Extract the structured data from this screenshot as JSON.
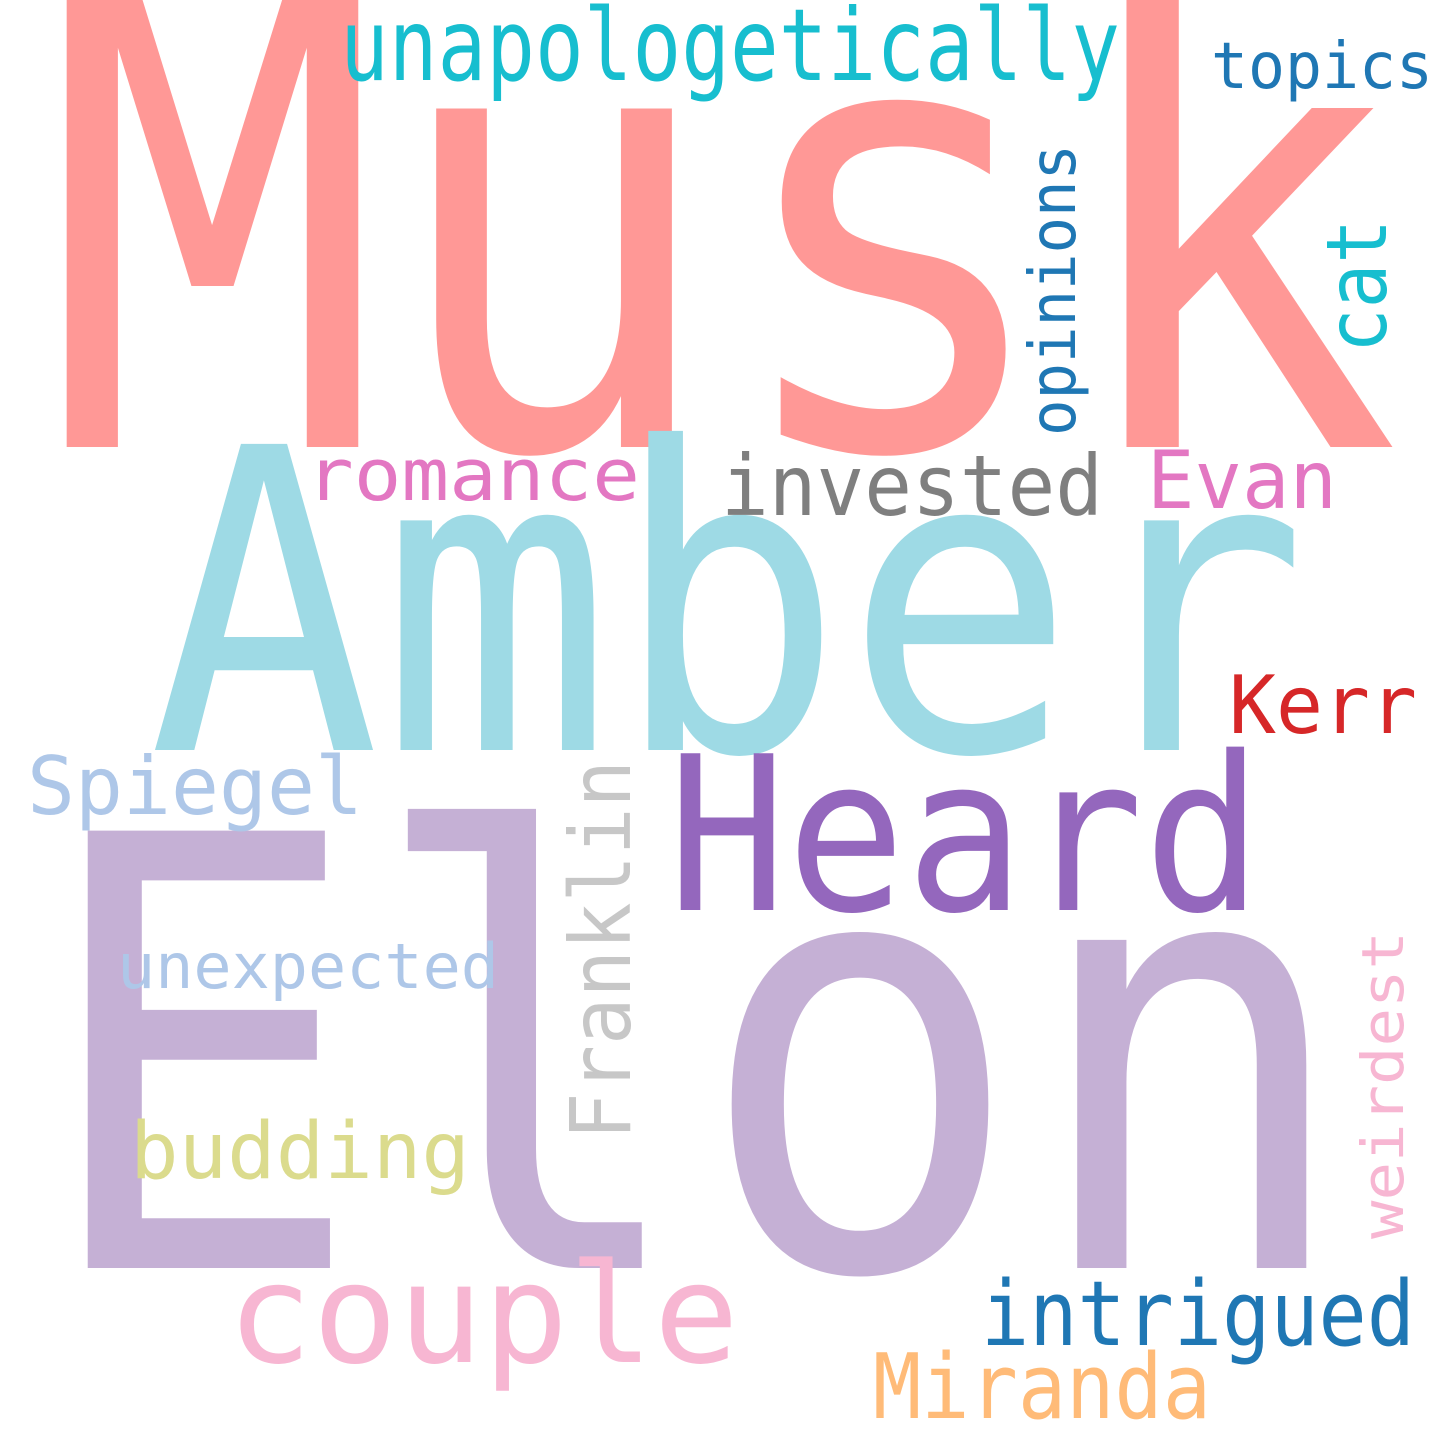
{
  "words": [
    {
      "text": "Musk",
      "color": "#ff9896"
    },
    {
      "text": "Amber",
      "color": "#9edae5"
    },
    {
      "text": "Elon",
      "color": "#c5b0d5"
    },
    {
      "text": "Heard",
      "color": "#9467bd"
    },
    {
      "text": "unapologetically",
      "color": "#17becf"
    },
    {
      "text": "topics",
      "color": "#1f77b4"
    },
    {
      "text": "opinions",
      "color": "#1f77b4"
    },
    {
      "text": "cat",
      "color": "#17becf"
    },
    {
      "text": "romance",
      "color": "#e377c2"
    },
    {
      "text": "invested",
      "color": "#7f7f7f"
    },
    {
      "text": "Evan",
      "color": "#e377c2"
    },
    {
      "text": "Kerr",
      "color": "#d62728"
    },
    {
      "text": "Spiegel",
      "color": "#aec7e8"
    },
    {
      "text": "Franklin",
      "color": "#c7c7c7"
    },
    {
      "text": "unexpected",
      "color": "#aec7e8"
    },
    {
      "text": "budding",
      "color": "#dbdb8d"
    },
    {
      "text": "weirdest",
      "color": "#f7b6d2"
    },
    {
      "text": "couple",
      "color": "#f7b6d2"
    },
    {
      "text": "intrigued",
      "color": "#1f77b4"
    },
    {
      "text": "Miranda",
      "color": "#ffbb78"
    }
  ]
}
